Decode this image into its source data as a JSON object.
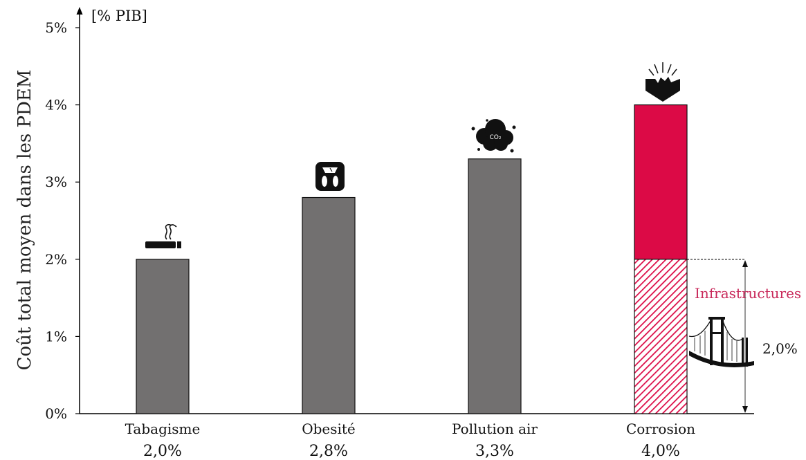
{
  "colors": {
    "bar_gray": "#727070",
    "bar_red": "#dc0a46",
    "hatch": "#dc0a46",
    "axis": "#000000",
    "annotation_pink": "#c8285a"
  },
  "chart_data": {
    "type": "bar",
    "title": "",
    "ylabel": "Coût total moyen dans les PDEM",
    "y_unit": "[% PIB]",
    "ylim": [
      0,
      5
    ],
    "yticks": [
      0,
      1,
      2,
      3,
      4,
      5
    ],
    "ytick_labels": [
      "0%",
      "1%",
      "2%",
      "3%",
      "4%",
      "5%"
    ],
    "categories": [
      "Tabagisme",
      "Obesité",
      "Pollution air",
      "Corrosion"
    ],
    "values": [
      2.0,
      2.8,
      3.3,
      4.0
    ],
    "value_labels": [
      "2,0%",
      "2,8%",
      "3,3%",
      "4,0%"
    ],
    "icons": [
      "cigarette-icon",
      "scale-icon",
      "co2-cloud-icon",
      "crumbling-concrete-icon"
    ],
    "co2_text": "CO₂",
    "corrosion_breakdown": {
      "infrastructures_value": 2.0,
      "infrastructures_label": "Infrastructures",
      "infrastructures_value_label": "2,0%",
      "icon": "bridge-icon"
    },
    "grid": false
  }
}
